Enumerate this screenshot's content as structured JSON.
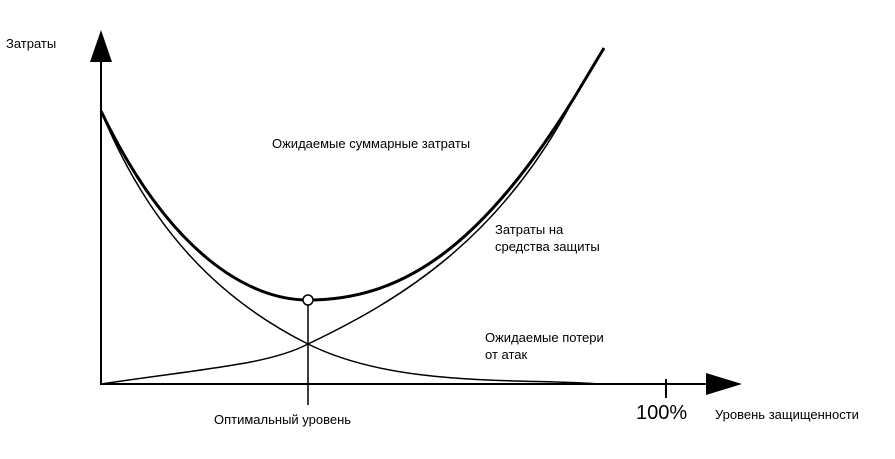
{
  "labels": {
    "y_axis": "Затраты",
    "x_axis": "Уровень защищенности",
    "hundred_percent": "100%",
    "total_costs": "Ожидаемые суммарные затраты",
    "protection_costs_line1": "Затраты на",
    "protection_costs_line2": "средства защиты",
    "attack_losses_line1": "Ожидаемые потери",
    "attack_losses_line2": "от атак",
    "optimal_level": "Оптимальный уровень"
  },
  "colors": {
    "ink": "#000000",
    "background": "#ffffff"
  }
}
